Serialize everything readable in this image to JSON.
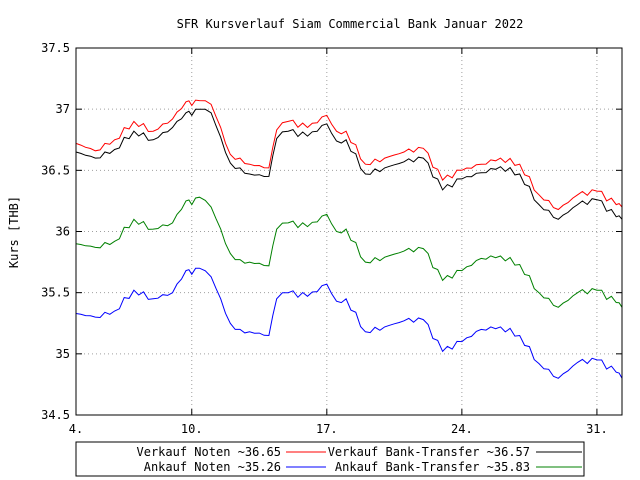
{
  "chart_data": {
    "type": "line",
    "title": "SFR Kursverlauf Siam Commercial Bank Januar 2022",
    "ylabel": "Kurs [THB]",
    "xlabel": "",
    "ylim": [
      34.5,
      37.5
    ],
    "xlim": [
      4,
      32.3
    ],
    "grid": true,
    "legend_position": "bottom",
    "y_ticks": [
      34.5,
      35,
      35.5,
      36,
      36.5,
      37,
      37.5
    ],
    "y_tick_labels": [
      "34.5",
      "35",
      "35.5",
      "36",
      "36.5",
      "37",
      "37.5"
    ],
    "x_ticks": [
      4,
      10,
      17,
      24,
      31
    ],
    "x_tick_labels": [
      "4.",
      "10.",
      "17.",
      "24.",
      "31."
    ],
    "series": [
      {
        "name": "Verkauf Noten ~36.65",
        "color": "#ff0000",
        "x": [
          4,
          5,
          6,
          7,
          8,
          9,
          9.7,
          10,
          10.4,
          11,
          11.5,
          12,
          12.5,
          13,
          14,
          14.4,
          15,
          16,
          17,
          17.5,
          18,
          19,
          20,
          21,
          22,
          23,
          24,
          25,
          26,
          27,
          28,
          29,
          30,
          31,
          32,
          32.3
        ],
        "values": [
          36.72,
          36.66,
          36.75,
          36.9,
          36.82,
          36.92,
          37.06,
          37.03,
          37.07,
          37.04,
          36.85,
          36.63,
          36.6,
          36.55,
          36.52,
          36.83,
          36.9,
          36.85,
          36.95,
          36.82,
          36.82,
          36.55,
          36.6,
          36.65,
          36.68,
          36.42,
          36.5,
          36.55,
          36.6,
          36.55,
          36.3,
          36.18,
          36.3,
          36.33,
          36.22,
          36.2
        ]
      },
      {
        "name": "Verkauf Bank-Transfer ~36.57",
        "color": "#000000",
        "x": [
          4,
          5,
          6,
          7,
          8,
          9,
          9.7,
          10,
          10.4,
          11,
          11.5,
          12,
          12.5,
          13,
          14,
          14.4,
          15,
          16,
          17,
          17.5,
          18,
          19,
          20,
          21,
          22,
          23,
          24,
          25,
          26,
          27,
          28,
          29,
          30,
          31,
          32,
          32.3
        ],
        "values": [
          36.65,
          36.6,
          36.67,
          36.82,
          36.75,
          36.85,
          36.97,
          36.95,
          37.0,
          36.97,
          36.77,
          36.56,
          36.52,
          36.47,
          36.45,
          36.76,
          36.82,
          36.78,
          36.88,
          36.74,
          36.75,
          36.47,
          36.52,
          36.57,
          36.6,
          36.34,
          36.43,
          36.48,
          36.53,
          36.47,
          36.22,
          36.1,
          36.22,
          36.26,
          36.12,
          36.1
        ]
      },
      {
        "name": "Ankauf Noten ~35.26",
        "color": "#0000ff",
        "x": [
          4,
          5,
          6,
          7,
          8,
          9,
          9.7,
          10,
          10.4,
          11,
          11.5,
          12,
          12.5,
          13,
          14,
          14.4,
          15,
          16,
          17,
          17.5,
          18,
          19,
          20,
          21,
          22,
          23,
          24,
          25,
          26,
          27,
          28,
          29,
          30,
          31,
          32,
          32.3
        ],
        "values": [
          35.33,
          35.3,
          35.35,
          35.52,
          35.45,
          35.5,
          35.68,
          35.65,
          35.7,
          35.63,
          35.45,
          35.25,
          35.2,
          35.18,
          35.15,
          35.45,
          35.5,
          35.47,
          35.57,
          35.43,
          35.45,
          35.18,
          35.22,
          35.27,
          35.28,
          35.02,
          35.1,
          35.2,
          35.22,
          35.15,
          34.92,
          34.8,
          34.93,
          34.95,
          34.85,
          34.8
        ]
      },
      {
        "name": "Ankauf Bank-Transfer ~35.83",
        "color": "#008000",
        "x": [
          4,
          5,
          6,
          7,
          8,
          9,
          9.7,
          10,
          10.4,
          11,
          11.5,
          12,
          12.5,
          13,
          14,
          14.4,
          15,
          16,
          17,
          17.5,
          18,
          19,
          20,
          21,
          22,
          23,
          24,
          25,
          26,
          27,
          28,
          29,
          30,
          31,
          32,
          32.3
        ],
        "values": [
          35.9,
          35.87,
          35.92,
          36.1,
          36.02,
          36.07,
          36.25,
          36.22,
          36.28,
          36.2,
          36.02,
          35.82,
          35.77,
          35.75,
          35.72,
          36.02,
          36.07,
          36.04,
          36.14,
          36.0,
          36.02,
          35.75,
          35.79,
          35.84,
          35.86,
          35.6,
          35.68,
          35.78,
          35.8,
          35.73,
          35.5,
          35.38,
          35.5,
          35.52,
          35.42,
          35.38
        ]
      }
    ]
  }
}
